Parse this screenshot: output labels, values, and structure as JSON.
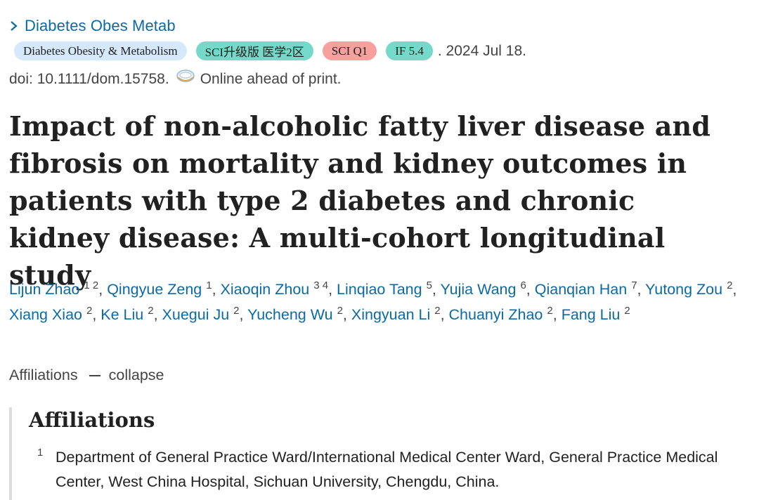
{
  "journal": {
    "short_name": "Diabetes Obes Metab",
    "icon": "chevron-right-icon"
  },
  "badges": {
    "journal_full": "Diabetes Obesity & Metabolism",
    "zone": "SCI升级版 医学2区",
    "quartile": "SCI Q1",
    "impact_factor": "IF 5.4",
    "colors": {
      "journal": "#d6e8fb",
      "zone": "#74d9c8",
      "quartile": "#f6a19d",
      "impact_factor": "#74d9c8"
    }
  },
  "pub_date": ". 2024 Jul 18.",
  "doi": {
    "text": "doi: 10.1111/dom.15758.",
    "ahead_icon": "online-ahead-icon",
    "ahead_text": "Online ahead of print."
  },
  "title": "Impact of non-alcoholic fatty liver disease and fibrosis on mortality and kidney outcomes in patients with type 2 diabetes and chronic kidney disease: A multi-cohort longitudinal study",
  "authors": [
    {
      "name": "Lijun Zhao",
      "affs": "1 2"
    },
    {
      "name": "Qingyue Zeng",
      "affs": "1"
    },
    {
      "name": "Xiaoqin Zhou",
      "affs": "3 4"
    },
    {
      "name": "Linqiao Tang",
      "affs": "5"
    },
    {
      "name": "Yujia Wang",
      "affs": "6"
    },
    {
      "name": "Qianqian Han",
      "affs": "7"
    },
    {
      "name": "Yutong Zou",
      "affs": "2"
    },
    {
      "name": "Xiang Xiao",
      "affs": "2"
    },
    {
      "name": "Ke Liu",
      "affs": "2"
    },
    {
      "name": "Xuegui Ju",
      "affs": "2"
    },
    {
      "name": "Yucheng Wu",
      "affs": "2"
    },
    {
      "name": "Xingyuan Li",
      "affs": "2"
    },
    {
      "name": "Chuanyi Zhao",
      "affs": "2"
    },
    {
      "name": "Fang Liu",
      "affs": "2"
    }
  ],
  "affiliations_toggle": {
    "label": "Affiliations",
    "action": "collapse"
  },
  "affiliations": {
    "heading": "Affiliations",
    "items": [
      {
        "num": "1",
        "text": "Department of General Practice Ward/International Medical Center Ward, General Practice Medical Center, West China Hospital, Sichuan University, Chengdu, China."
      }
    ]
  }
}
